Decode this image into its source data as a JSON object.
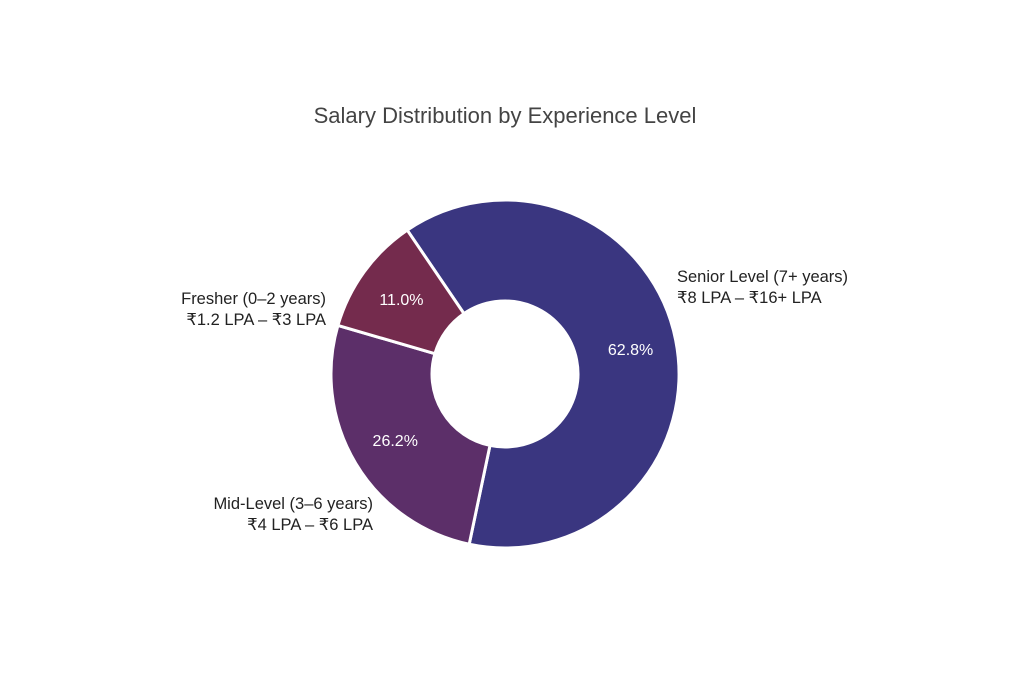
{
  "chart_data": {
    "type": "pie",
    "title": "Salary Distribution by Experience Level",
    "categories": [
      "Senior Level (7+ years)",
      "Mid-Level (3–6 years)",
      "Fresher (0–2 years)"
    ],
    "ranges": [
      "₹8 LPA – ₹16+ LPA",
      "₹4 LPA – ₹6 LPA",
      "₹1.2 LPA – ₹3 LPA"
    ],
    "values": [
      62.8,
      26.2,
      11.0
    ],
    "percent_labels": [
      "62.8%",
      "26.2%",
      "11.0%"
    ],
    "colors": [
      "#3a3680",
      "#5c2f69",
      "#742b4d"
    ],
    "legend": "none"
  }
}
